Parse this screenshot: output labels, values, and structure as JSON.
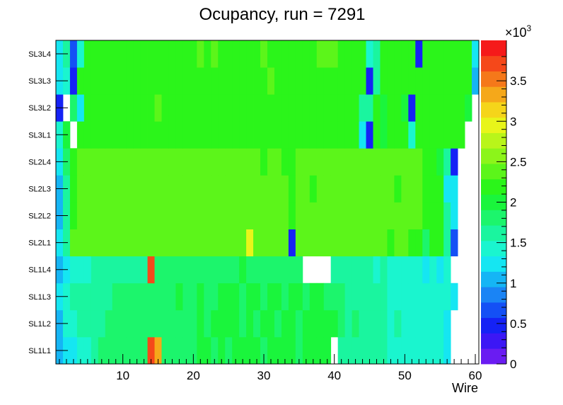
{
  "chart_data": {
    "type": "heatmap",
    "title": "Ocupancy, run = 7291",
    "xlabel": "Wire",
    "ylabel": "",
    "x_range": [
      0.5,
      60.5
    ],
    "x_ticks": [
      "10",
      "20",
      "30",
      "40",
      "50",
      "60"
    ],
    "y_categories": [
      "SL1L1",
      "SL1L2",
      "SL1L3",
      "SL1L4",
      "SL2L1",
      "SL2L2",
      "SL2L3",
      "SL2L4",
      "SL3L1",
      "SL3L2",
      "SL3L3",
      "SL3L4"
    ],
    "z_range": [
      0,
      4000
    ],
    "z_ticks": [
      "0",
      "0.5",
      "1",
      "1.5",
      "2",
      "2.5",
      "3",
      "3.5"
    ],
    "z_exponent_label": "×10",
    "z_exponent_power": "3",
    "palette": [
      "#6a1cf2",
      "#3c17f5",
      "#1522f5",
      "#1450f5",
      "#1a84f5",
      "#15b5f5",
      "#15e6f2",
      "#1af5cf",
      "#1af59f",
      "#1cf56c",
      "#1af53c",
      "#2bf51a",
      "#5cf51a",
      "#8cf51a",
      "#b9f51a",
      "#e8f51a",
      "#f5d51a",
      "#f5a81a",
      "#f5781a",
      "#f5481a",
      "#f51a1a"
    ],
    "cells": [
      [
        1100,
        1300,
        1300,
        1450,
        1500,
        1550,
        1750,
        1800,
        1800,
        1800,
        1800,
        1800,
        1850,
        3700,
        3300,
        1850,
        1900,
        1850,
        1900,
        1900,
        1950,
        2000,
        1900,
        2000,
        1900,
        1950,
        2000,
        2000,
        2000,
        1900,
        2000,
        1950,
        2000,
        1950,
        1900,
        1950,
        1950,
        1950,
        1950,
        0,
        1700,
        1700,
        1700,
        1650,
        1650,
        1600,
        1600,
        1450,
        1500,
        1500,
        1400,
        1450,
        1450,
        1400,
        1400,
        1300,
        0,
        0,
        0,
        0
      ],
      [
        1000,
        1400,
        1500,
        1550,
        1600,
        1650,
        1700,
        1750,
        1750,
        1800,
        1800,
        1850,
        1800,
        1850,
        1850,
        1850,
        1900,
        1900,
        1900,
        1850,
        1950,
        1900,
        2000,
        2000,
        2050,
        1950,
        1900,
        1950,
        1900,
        1950,
        2000,
        1900,
        1950,
        2000,
        1900,
        2000,
        1950,
        1950,
        1950,
        1950,
        1750,
        1700,
        1750,
        1700,
        1700,
        1600,
        1650,
        1450,
        1550,
        1500,
        1450,
        1400,
        1400,
        1400,
        1400,
        1300,
        0,
        0,
        0,
        0
      ],
      [
        1200,
        1450,
        1550,
        1600,
        1600,
        1650,
        1700,
        1700,
        1750,
        1800,
        1800,
        1800,
        1850,
        1850,
        1850,
        1800,
        1800,
        1950,
        1800,
        1900,
        2000,
        1850,
        1900,
        1950,
        1950,
        1950,
        1900,
        2000,
        2000,
        1900,
        1950,
        1950,
        1900,
        1950,
        2000,
        1900,
        2000,
        1950,
        1900,
        1900,
        1750,
        1650,
        1700,
        1650,
        1650,
        1550,
        1600,
        1400,
        1500,
        1400,
        1500,
        1400,
        1400,
        1400,
        1350,
        1350,
        1300,
        0,
        0,
        0
      ],
      [
        1050,
        1300,
        1400,
        1450,
        1500,
        1550,
        1650,
        1600,
        1650,
        1700,
        1650,
        1700,
        1700,
        3700,
        1850,
        1800,
        1850,
        1850,
        1800,
        1800,
        1850,
        1900,
        1900,
        1850,
        1900,
        1900,
        1950,
        1900,
        1900,
        1850,
        1900,
        1850,
        1900,
        1900,
        1900,
        0,
        0,
        0,
        0,
        1700,
        1650,
        1650,
        1650,
        1600,
        1650,
        1500,
        1550,
        1400,
        1450,
        1350,
        1450,
        1350,
        1300,
        1350,
        1300,
        1350,
        0,
        0,
        0,
        0
      ],
      [
        1300,
        1700,
        2300,
        2400,
        2400,
        2450,
        2400,
        2450,
        2450,
        2450,
        2400,
        2450,
        2400,
        2450,
        2400,
        2450,
        2400,
        2450,
        2400,
        2450,
        2400,
        2450,
        2450,
        2400,
        2450,
        2400,
        2450,
        3000,
        2450,
        2400,
        2400,
        2350,
        2350,
        500,
        2400,
        2450,
        2400,
        2350,
        2400,
        2350,
        2400,
        2400,
        2350,
        2400,
        2350,
        2350,
        2300,
        2250,
        2300,
        2300,
        2250,
        2200,
        1900,
        2250,
        2200,
        1550,
        700,
        0,
        0,
        0
      ],
      [
        1000,
        1600,
        2200,
        2300,
        2300,
        2350,
        2300,
        2350,
        2350,
        2350,
        2300,
        2350,
        2300,
        2350,
        2350,
        2350,
        2350,
        2350,
        2400,
        2450,
        2450,
        2400,
        2450,
        2350,
        2400,
        2400,
        2350,
        2350,
        2350,
        2400,
        2400,
        2350,
        2300,
        2100,
        2350,
        2350,
        2300,
        2350,
        2350,
        2350,
        2300,
        2300,
        2350,
        2400,
        2350,
        2300,
        2300,
        2300,
        2300,
        2300,
        2300,
        2300,
        2150,
        2250,
        2200,
        1600,
        1300,
        0,
        0,
        0
      ],
      [
        1100,
        1650,
        2200,
        2300,
        2300,
        2350,
        2350,
        2350,
        2350,
        2350,
        2350,
        2350,
        2350,
        2350,
        2350,
        2350,
        2350,
        2350,
        2350,
        2350,
        2350,
        2350,
        2350,
        2350,
        2350,
        2350,
        2350,
        2350,
        2350,
        2350,
        2350,
        2350,
        2300,
        2200,
        2350,
        2350,
        2250,
        2350,
        2350,
        2350,
        2350,
        2350,
        2350,
        2350,
        2350,
        2300,
        2300,
        2300,
        2250,
        2300,
        2300,
        2300,
        2150,
        2200,
        2200,
        1300,
        1250,
        0,
        0,
        0
      ],
      [
        1250,
        1800,
        2200,
        2300,
        2300,
        2300,
        2350,
        2350,
        2350,
        2350,
        2350,
        2350,
        2350,
        2350,
        2350,
        2350,
        2350,
        2350,
        2350,
        2350,
        2350,
        2350,
        2350,
        2350,
        2350,
        2350,
        2350,
        2350,
        2350,
        2250,
        2350,
        2350,
        2250,
        2100,
        2350,
        2350,
        2350,
        2300,
        2300,
        2300,
        2350,
        2350,
        2350,
        2300,
        2350,
        2350,
        2350,
        2350,
        2300,
        2300,
        2300,
        2350,
        2150,
        2200,
        1950,
        1600,
        400,
        0,
        0,
        0
      ],
      [
        1350,
        2000,
        0,
        2100,
        2150,
        2100,
        2150,
        2100,
        2150,
        2100,
        2150,
        2200,
        2150,
        2150,
        2200,
        2150,
        2150,
        2150,
        2150,
        2150,
        2150,
        2150,
        2150,
        2150,
        2200,
        2200,
        2150,
        2150,
        2150,
        2150,
        2150,
        2200,
        2150,
        2150,
        2150,
        2150,
        2150,
        2150,
        2150,
        2150,
        2200,
        2150,
        2150,
        1300,
        500,
        2100,
        2050,
        2100,
        2100,
        2150,
        1450,
        2100,
        2100,
        2100,
        2100,
        2100,
        2100,
        2100,
        0,
        0
      ],
      [
        500,
        0,
        1850,
        1300,
        2100,
        2150,
        2150,
        2150,
        2100,
        2150,
        2150,
        2200,
        2250,
        2150,
        2350,
        2150,
        2150,
        2150,
        2150,
        2200,
        2150,
        2150,
        2150,
        2200,
        2200,
        2150,
        2150,
        2100,
        2150,
        2200,
        2200,
        2100,
        2150,
        2150,
        2150,
        2150,
        2200,
        2200,
        2200,
        2150,
        2100,
        2150,
        2150,
        1550,
        1600,
        2100,
        2050,
        2100,
        2150,
        2050,
        400,
        2100,
        2100,
        2100,
        2100,
        2100,
        2100,
        2100,
        2050,
        0
      ],
      [
        1200,
        1500,
        500,
        2100,
        2200,
        2200,
        2200,
        2250,
        2200,
        2200,
        2250,
        2250,
        2250,
        2250,
        2250,
        2250,
        2150,
        2150,
        2150,
        2150,
        2150,
        2200,
        2250,
        2250,
        2250,
        2200,
        2200,
        2250,
        2200,
        2200,
        2300,
        2250,
        2250,
        2250,
        2250,
        2200,
        2200,
        2200,
        2200,
        2200,
        2200,
        2250,
        2250,
        2150,
        500,
        1550,
        2200,
        2250,
        2150,
        2150,
        2150,
        2100,
        2150,
        2150,
        2200,
        2150,
        2150,
        2150,
        2150,
        1100
      ],
      [
        1300,
        1600,
        600,
        1450,
        2150,
        2150,
        2150,
        2150,
        2150,
        2150,
        2150,
        2200,
        2150,
        2200,
        2150,
        2150,
        2200,
        2150,
        2150,
        2250,
        2300,
        2250,
        2300,
        2250,
        2250,
        2150,
        2150,
        2150,
        2250,
        2300,
        2200,
        2150,
        2200,
        2200,
        2200,
        2200,
        2250,
        2300,
        2300,
        2400,
        2150,
        2200,
        2150,
        2150,
        1500,
        1650,
        2150,
        2150,
        2150,
        2150,
        2150,
        500,
        2150,
        2150,
        2150,
        2150,
        2150,
        2150,
        2150,
        1300
      ]
    ]
  }
}
